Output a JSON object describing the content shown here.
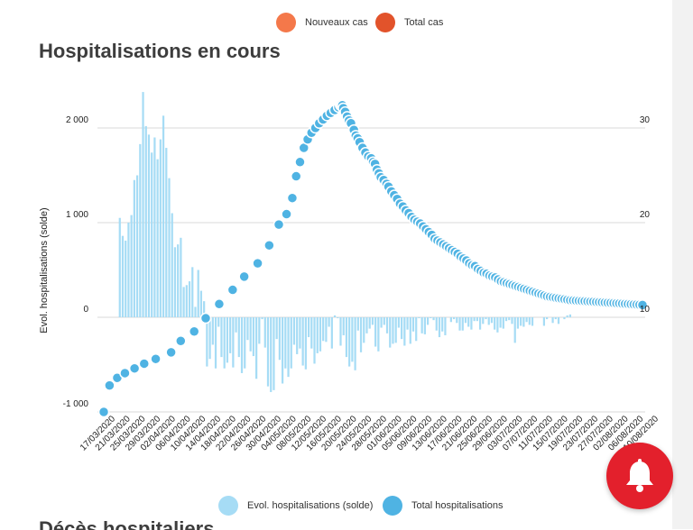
{
  "legend_top": [
    {
      "label": "Nouveaux cas",
      "color": "#f4784a"
    },
    {
      "label": "Total cas",
      "color": "#e2532b"
    }
  ],
  "next_section_title": "Décès hospitaliers",
  "alert_icon": "bell-icon",
  "chart_data": {
    "type": "bar+line",
    "title": "Hospitalisations en cours",
    "ylabel": "Evol. hospitalisations (solde)",
    "y_left_ticks": [
      {
        "value": -1000,
        "label": "-1 000"
      },
      {
        "value": 0,
        "label": "0"
      },
      {
        "value": 1000,
        "label": "1 000"
      },
      {
        "value": 2000,
        "label": "2 000"
      }
    ],
    "y_right_ticks": [
      {
        "value": 10,
        "label": "10"
      },
      {
        "value": 20,
        "label": "20"
      },
      {
        "value": 30,
        "label": "30"
      }
    ],
    "ylim_left": [
      -1000,
      2000
    ],
    "ylim_right": [
      0,
      30
    ],
    "grid": true,
    "x_tick_labels": [
      "17/03/2020",
      "21/03/2020",
      "25/03/2020",
      "29/03/2020",
      "02/04/2020",
      "06/04/2020",
      "10/04/2020",
      "14/04/2020",
      "18/04/2020",
      "22/04/2020",
      "26/04/2020",
      "30/04/2020",
      "04/05/2020",
      "08/05/2020",
      "12/05/2020",
      "16/05/2020",
      "20/05/2020",
      "24/05/2020",
      "28/05/2020",
      "01/06/2020",
      "05/06/2020",
      "09/06/2020",
      "13/06/2020",
      "17/06/2020",
      "21/06/2020",
      "25/06/2020",
      "29/06/2020",
      "03/07/2020",
      "07/07/2020",
      "11/07/2020",
      "15/07/2020",
      "19/07/2020",
      "23/07/2020",
      "27/07/2020",
      "02/08/2020",
      "06/08/2020",
      "10/08/2020"
    ],
    "series": [
      {
        "name": "Evol. hospitalisations (solde)",
        "type": "bar",
        "axis": "left",
        "color": "#a6dcf5",
        "values": [
          0,
          0,
          0,
          1050,
          860,
          810,
          1000,
          1080,
          1450,
          1500,
          1830,
          2380,
          2020,
          1930,
          1740,
          1900,
          1670,
          1880,
          2130,
          1790,
          1470,
          1100,
          740,
          770,
          840,
          320,
          340,
          380,
          530,
          110,
          500,
          280,
          170,
          -520,
          -440,
          -290,
          -540,
          -100,
          -420,
          -540,
          -480,
          -380,
          -530,
          -160,
          -420,
          -590,
          -540,
          -240,
          -360,
          -410,
          -650,
          -280,
          -20,
          -320,
          -730,
          -790,
          -770,
          -230,
          -450,
          -700,
          -540,
          -630,
          -540,
          -290,
          -390,
          -330,
          -510,
          -550,
          -210,
          -330,
          -490,
          -380,
          -360,
          -250,
          -260,
          -100,
          -330,
          20,
          -10,
          -300,
          -190,
          -420,
          -520,
          -470,
          -560,
          -140,
          -370,
          -270,
          -170,
          -120,
          -80,
          -310,
          -360,
          -110,
          -80,
          -170,
          -320,
          -280,
          -270,
          -110,
          -230,
          -300,
          -130,
          -280,
          -150,
          -250,
          -10,
          -170,
          -180,
          -80,
          -10,
          -30,
          -140,
          -210,
          -150,
          -190,
          0,
          -50,
          -20,
          -60,
          -140,
          -140,
          -60,
          -100,
          -130,
          -40,
          -40,
          -130,
          -70,
          -20,
          -80,
          -60,
          -130,
          -160,
          -110,
          -120,
          -40,
          -30,
          -70,
          -270,
          -120,
          -90,
          -100,
          -50,
          -80,
          -90,
          0,
          0,
          0,
          -90,
          -20,
          0,
          -60,
          -20,
          -70,
          0,
          -20,
          20,
          30
        ]
      },
      {
        "name": "Total hospitalisations",
        "type": "line",
        "axis": "right",
        "color": "#4fb3e3",
        "values": [
          [
            -1000,
            -1000
          ],
          [
            -970,
            -720
          ],
          [
            -930,
            -640
          ],
          [
            -890,
            -590
          ],
          [
            -840,
            -540
          ],
          [
            -790,
            -490
          ],
          [
            -730,
            -440
          ],
          [
            -650,
            -370
          ],
          [
            -600,
            -250
          ],
          [
            -530,
            -150
          ],
          [
            -470,
            -10
          ],
          [
            -400,
            140
          ],
          [
            -330,
            290
          ],
          [
            -270,
            430
          ],
          [
            -200,
            570
          ],
          [
            -140,
            760
          ],
          [
            -90,
            980
          ],
          [
            -50,
            1090
          ],
          [
            -20,
            1260
          ],
          [
            0,
            1490
          ],
          [
            20,
            1640
          ],
          [
            40,
            1790
          ],
          [
            60,
            1880
          ],
          [
            80,
            1950
          ],
          [
            100,
            2000
          ],
          [
            120,
            2050
          ],
          [
            140,
            2090
          ],
          [
            160,
            2130
          ],
          [
            180,
            2160
          ],
          [
            200,
            2190
          ],
          [
            220,
            2220
          ],
          [
            230,
            2240
          ],
          [
            235,
            2250
          ],
          [
            240,
            2240
          ],
          [
            245,
            2210
          ],
          [
            255,
            2170
          ],
          [
            265,
            2120
          ],
          [
            275,
            2080
          ],
          [
            285,
            2050
          ],
          [
            300,
            1980
          ],
          [
            310,
            1920
          ],
          [
            320,
            1890
          ],
          [
            330,
            1850
          ],
          [
            345,
            1790
          ],
          [
            360,
            1740
          ],
          [
            375,
            1700
          ],
          [
            390,
            1680
          ],
          [
            400,
            1640
          ],
          [
            410,
            1620
          ],
          [
            420,
            1560
          ],
          [
            430,
            1520
          ],
          [
            440,
            1480
          ],
          [
            455,
            1450
          ],
          [
            470,
            1410
          ],
          [
            480,
            1380
          ],
          [
            495,
            1330
          ],
          [
            510,
            1290
          ],
          [
            525,
            1250
          ],
          [
            540,
            1200
          ],
          [
            555,
            1170
          ],
          [
            570,
            1130
          ],
          [
            585,
            1100
          ],
          [
            600,
            1060
          ],
          [
            615,
            1030
          ],
          [
            630,
            1010
          ],
          [
            645,
            990
          ],
          [
            660,
            960
          ],
          [
            675,
            930
          ],
          [
            690,
            900
          ],
          [
            705,
            870
          ],
          [
            720,
            830
          ],
          [
            735,
            810
          ],
          [
            750,
            790
          ],
          [
            765,
            770
          ],
          [
            780,
            750
          ],
          [
            795,
            730
          ],
          [
            810,
            710
          ],
          [
            825,
            690
          ],
          [
            840,
            670
          ],
          [
            855,
            640
          ],
          [
            870,
            620
          ],
          [
            885,
            600
          ],
          [
            900,
            570
          ],
          [
            915,
            550
          ],
          [
            930,
            540
          ],
          [
            945,
            510
          ],
          [
            960,
            490
          ],
          [
            975,
            470
          ],
          [
            990,
            460
          ],
          [
            1005,
            440
          ],
          [
            1020,
            430
          ],
          [
            1035,
            420
          ],
          [
            1050,
            400
          ],
          [
            1065,
            380
          ],
          [
            1080,
            370
          ],
          [
            1095,
            360
          ],
          [
            1110,
            350
          ],
          [
            1125,
            340
          ],
          [
            1140,
            330
          ],
          [
            1155,
            320
          ],
          [
            1170,
            310
          ],
          [
            1185,
            300
          ],
          [
            1200,
            290
          ],
          [
            1215,
            280
          ],
          [
            1230,
            270
          ],
          [
            1245,
            260
          ],
          [
            1260,
            250
          ],
          [
            1275,
            240
          ],
          [
            1290,
            230
          ],
          [
            1305,
            220
          ],
          [
            1320,
            215
          ],
          [
            1335,
            210
          ],
          [
            1350,
            205
          ],
          [
            1365,
            200
          ],
          [
            1380,
            195
          ],
          [
            1395,
            190
          ],
          [
            1410,
            185
          ],
          [
            1425,
            180
          ],
          [
            1440,
            178
          ],
          [
            1455,
            176
          ],
          [
            1470,
            174
          ],
          [
            1485,
            172
          ],
          [
            1500,
            170
          ],
          [
            1515,
            168
          ],
          [
            1530,
            166
          ],
          [
            1545,
            164
          ],
          [
            1560,
            162
          ],
          [
            1575,
            160
          ],
          [
            1590,
            158
          ],
          [
            1605,
            156
          ],
          [
            1620,
            154
          ],
          [
            1635,
            152
          ],
          [
            1650,
            150
          ],
          [
            1665,
            148
          ],
          [
            1680,
            146
          ],
          [
            1695,
            144
          ],
          [
            1710,
            142
          ],
          [
            1725,
            140
          ],
          [
            1740,
            138
          ],
          [
            1755,
            136
          ],
          [
            1770,
            134
          ],
          [
            1785,
            132
          ],
          [
            1800,
            130
          ]
        ]
      }
    ],
    "legend": "bottom"
  }
}
